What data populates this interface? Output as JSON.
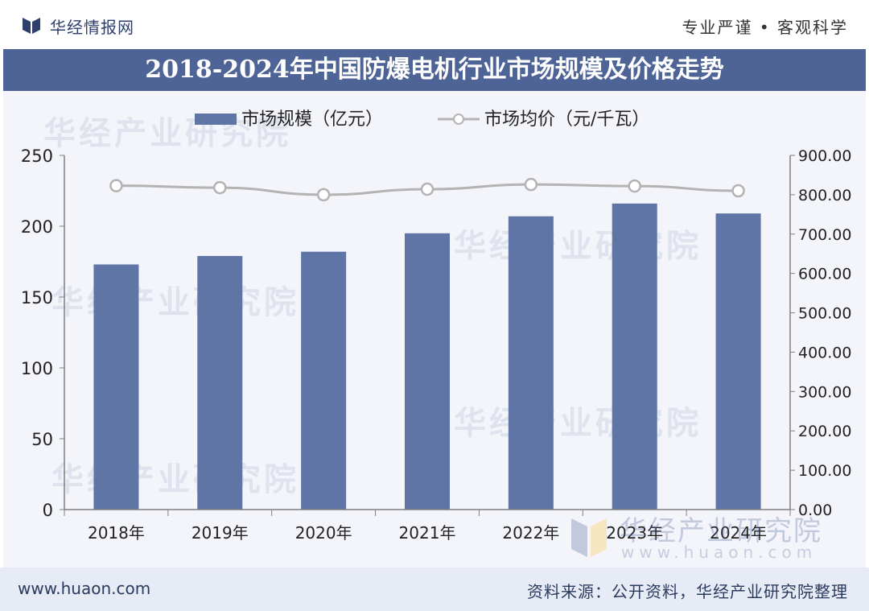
{
  "header": {
    "brand": "华经情报网",
    "slogan": "专业严谨 • 客观科学"
  },
  "chart_data": {
    "type": "bar",
    "title": "2018-2024年中国防爆电机行业市场规模及价格走势",
    "categories": [
      "2018年",
      "2019年",
      "2020年",
      "2021年",
      "2022年",
      "2023年",
      "2024年"
    ],
    "series": [
      {
        "name": "市场规模（亿元）",
        "kind": "bar",
        "axis": "left",
        "color": "#5e75a5",
        "values": [
          173,
          179,
          182,
          195,
          207,
          216,
          209
        ]
      },
      {
        "name": "市场均价（元/千瓦）",
        "kind": "line",
        "axis": "right",
        "color": "#b3b3b3",
        "values": [
          823,
          818,
          800,
          814,
          826,
          822,
          810
        ]
      }
    ],
    "left_axis": {
      "min": 0,
      "max": 250,
      "ticks": [
        "0",
        "50",
        "100",
        "150",
        "200",
        "250"
      ]
    },
    "right_axis": {
      "min": 0,
      "max": 900,
      "ticks": [
        "0.00",
        "100.00",
        "200.00",
        "300.00",
        "400.00",
        "500.00",
        "600.00",
        "700.00",
        "800.00",
        "900.00"
      ]
    },
    "legend_position": "top-center",
    "grid": false
  },
  "watermark": {
    "cn": "华经产业研究院",
    "en": "www.huaon.com"
  },
  "footer": {
    "site": "www.huaon.com",
    "source": "资料来源：公开资料，华经产业研究院整理"
  }
}
